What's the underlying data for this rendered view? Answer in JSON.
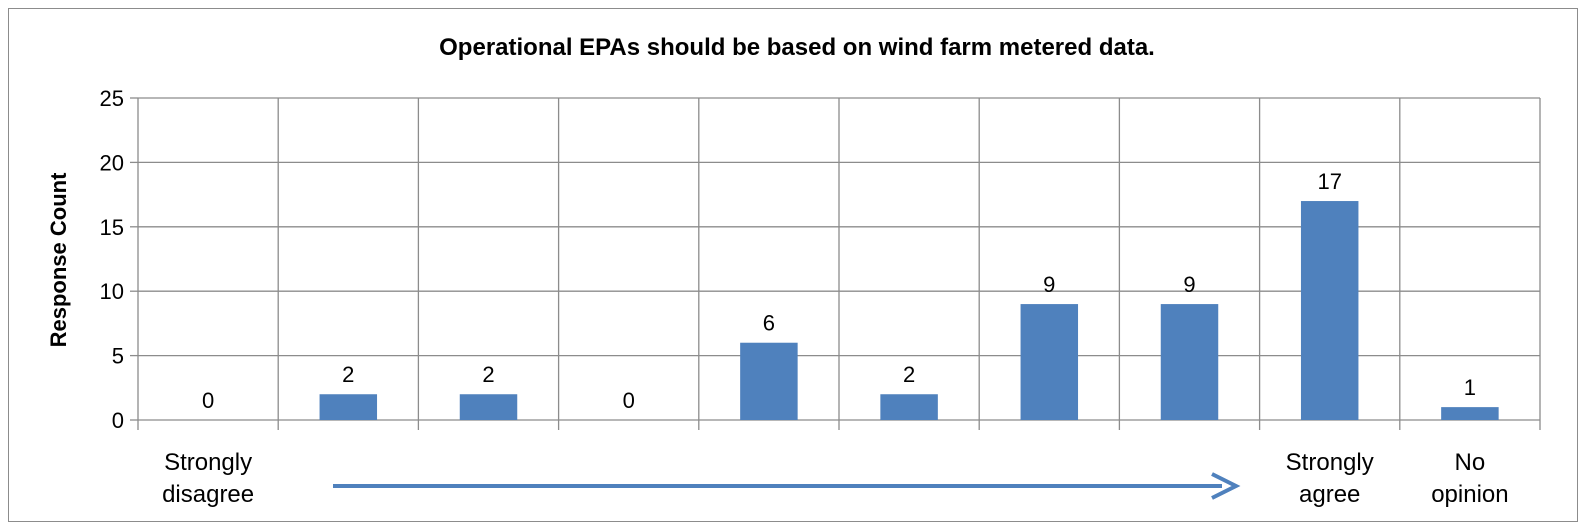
{
  "chart_data": {
    "type": "bar",
    "title": "Operational EPAs should be based on wind farm metered data.",
    "xlabel": "",
    "ylabel": "Response Count",
    "ylim": [
      0,
      25
    ],
    "yticks": [
      0,
      5,
      10,
      15,
      20,
      25
    ],
    "grid": true,
    "legend": "none",
    "categories": [
      [
        "Strongly",
        "disagree"
      ],
      [],
      [],
      [],
      [],
      [],
      [],
      [],
      [
        "Strongly",
        "agree"
      ],
      [
        "No",
        "opinion"
      ]
    ],
    "values": [
      0,
      2,
      2,
      0,
      6,
      2,
      9,
      9,
      17,
      1
    ],
    "data_labels": true,
    "bar_color": "#4f81bd",
    "annotation": "arrow from disagree to agree",
    "arrow_color": "#4f81bd"
  }
}
